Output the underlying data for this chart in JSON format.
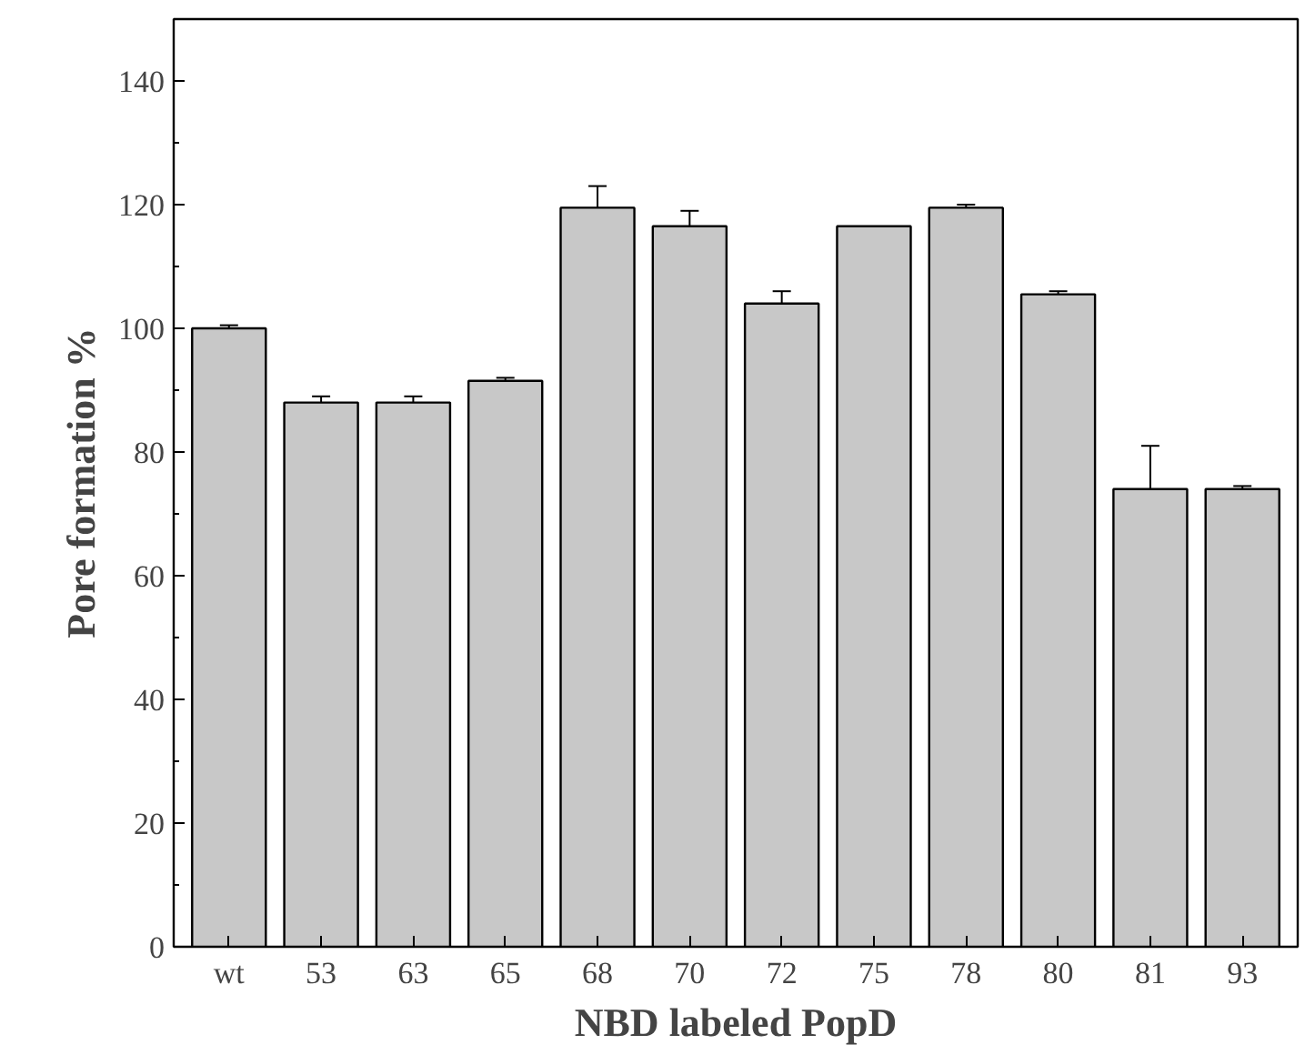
{
  "chart_data": {
    "type": "bar",
    "xlabel": "NBD labeled PopD",
    "ylabel": "Pore formation %",
    "categories": [
      "wt",
      "53",
      "63",
      "65",
      "68",
      "70",
      "72",
      "75",
      "78",
      "80",
      "81",
      "93"
    ],
    "values": [
      100,
      88,
      88,
      91.5,
      119.5,
      116.5,
      104,
      116.5,
      119.5,
      105.5,
      74,
      74
    ],
    "errors": [
      0.5,
      1,
      1,
      0.5,
      3.5,
      2.5,
      2,
      null,
      0.5,
      0.5,
      7,
      0.5
    ],
    "color": "#c8c8c8",
    "ylim": [
      0,
      150
    ],
    "yticks": [
      0,
      20,
      40,
      60,
      80,
      100,
      120,
      140
    ],
    "grid": false
  }
}
